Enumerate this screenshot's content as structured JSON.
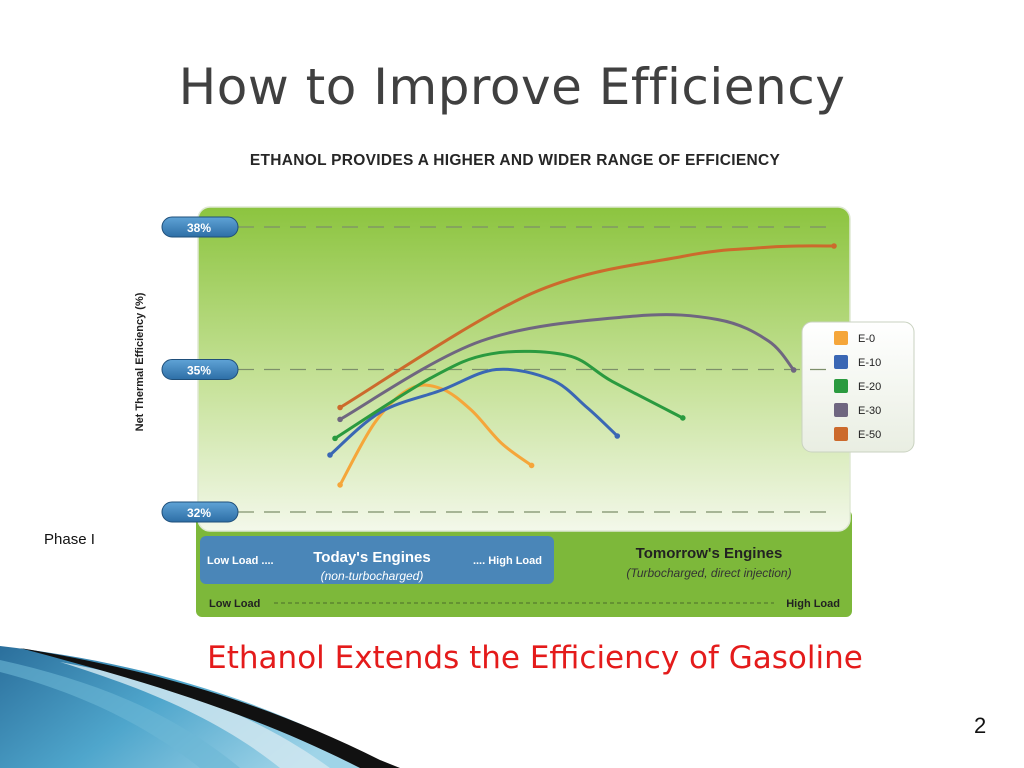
{
  "slide": {
    "title": "How to Improve Efficiency",
    "subtitle": "Ethanol Extends the Efficiency of Gasoline",
    "side_label": "Phase I",
    "page_number": "2"
  },
  "chart_data": {
    "type": "line",
    "title": "ETHANOL PROVIDES A HIGHER AND WIDER RANGE OF EFFICIENCY",
    "ylabel": "Net Thermal Efficiency (%)",
    "yticks": [
      "38%",
      "35%",
      "32%"
    ],
    "ylim": [
      32,
      38
    ],
    "xlim": [
      0,
      100
    ],
    "grid": true,
    "legend_position": "right",
    "x_band_top": {
      "left": "Low Load ....",
      "center": "Today's Engines",
      "center_sub": "(non-turbocharged)",
      "right": ".... High Load"
    },
    "x_band_right": {
      "center": "Tomorrow's Engines",
      "center_sub": "(Turbocharged, direct injection)"
    },
    "x_band_bottom": {
      "left": "Low Load",
      "right": "High Load"
    },
    "series": [
      {
        "name": "E-0",
        "color": "#f5a63a",
        "x": [
          2,
          9,
          16,
          22,
          28,
          34,
          40
        ],
        "y": [
          32.57,
          33.9,
          34.6,
          34.6,
          34.15,
          33.45,
          32.98
        ]
      },
      {
        "name": "E-10",
        "color": "#3a67b4",
        "x": [
          0,
          10,
          22,
          33,
          44,
          51,
          57
        ],
        "y": [
          33.2,
          34.1,
          34.56,
          35.0,
          34.78,
          34.2,
          33.6
        ]
      },
      {
        "name": "E-20",
        "color": "#2a9a3f",
        "x": [
          1,
          20,
          32,
          47,
          56,
          70
        ],
        "y": [
          33.55,
          34.82,
          35.33,
          35.3,
          34.75,
          33.98
        ]
      },
      {
        "name": "E-30",
        "color": "#6f6680",
        "x": [
          2,
          30,
          60,
          77,
          87,
          92
        ],
        "y": [
          33.95,
          35.6,
          36.12,
          36.05,
          35.6,
          34.99
        ]
      },
      {
        "name": "E-50",
        "color": "#cc6a2c",
        "x": [
          2,
          40,
          70,
          85,
          93,
          100
        ],
        "y": [
          34.2,
          36.6,
          37.38,
          37.56,
          37.6,
          37.6
        ]
      }
    ]
  }
}
